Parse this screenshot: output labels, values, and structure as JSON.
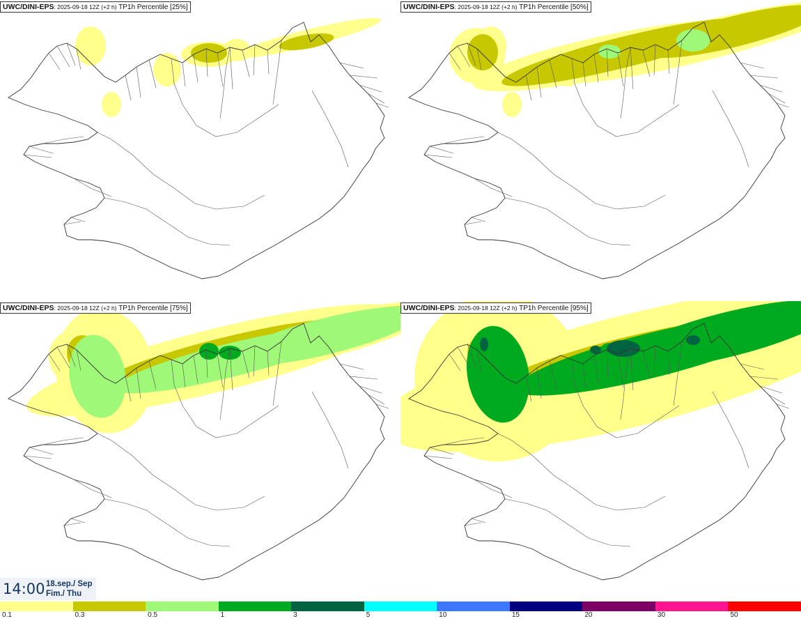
{
  "panels": [
    {
      "source": "UWC/DINI-EPS",
      "run": ": 2025-09-18 12Z (+2 h)",
      "field": "TP1h Percentile [25%]",
      "level": 0
    },
    {
      "source": "UWC/DINI-EPS",
      "run": ": 2025-09-18 12Z (+2 h)",
      "field": "TP1h Percentile [50%]",
      "level": 1
    },
    {
      "source": "UWC/DINI-EPS",
      "run": ": 2025-09-18 12Z (+2 h)",
      "field": "TP1h Percentile [75%]",
      "level": 2
    },
    {
      "source": "UWC/DINI-EPS",
      "run": ": 2025-09-18 12Z (+2 h)",
      "field": "TP1h Percentile [95%]",
      "level": 3
    }
  ],
  "valid_time": {
    "time": "14:00",
    "date": "18.sep./ Sep",
    "day": "Fim./ Thu"
  },
  "legend": {
    "colors": [
      "#ffff8c",
      "#c8c800",
      "#a0f878",
      "#00aa1e",
      "#006440",
      "#00ffff",
      "#3c78ff",
      "#000080",
      "#7d0064",
      "#ff1490",
      "#ff0000"
    ],
    "labels": [
      "0.1",
      "0.3",
      "0.5",
      "1",
      "3",
      "5",
      "10",
      "15",
      "20",
      "30",
      "50"
    ]
  },
  "map": {
    "sea_color": "#ffffff",
    "coast_color": "#333333"
  }
}
